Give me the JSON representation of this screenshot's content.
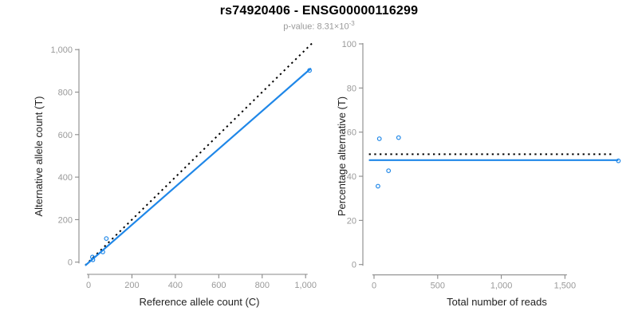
{
  "header": {
    "title": "rs74920406 - ENSG00000116299",
    "subtitle_prefix": "p-value: 8.31×10",
    "subtitle_exponent": "-3"
  },
  "colors": {
    "accent_blue": "#1F87E8",
    "dotted_black": "#000000",
    "axis_line": "#8A8A8A",
    "tick_text": "#9A9A9A",
    "label_text": "#222222",
    "subtitle_text": "#9A9A9A"
  },
  "chart_data": [
    {
      "id": "allele_counts",
      "type": "scatter",
      "xlabel": "Reference allele count (C)",
      "ylabel": "Alternative allele count (T)",
      "xlim": [
        0,
        1000
      ],
      "ylim": [
        0,
        1000
      ],
      "x_ticks": [
        0,
        200,
        400,
        600,
        800,
        1000
      ],
      "x_tick_labels": [
        "0",
        "200",
        "400",
        "600",
        "800",
        "1,000"
      ],
      "y_ticks": [
        0,
        200,
        400,
        600,
        800,
        1000
      ],
      "y_tick_labels": [
        "0",
        "200",
        "400",
        "600",
        "800",
        "1,000"
      ],
      "grid": false,
      "legend": "none",
      "points": [
        [
          20,
          11
        ],
        [
          18,
          24
        ],
        [
          66,
          48
        ],
        [
          82,
          111
        ],
        [
          1018,
          902
        ]
      ],
      "lines": [
        {
          "name": "identity-line",
          "style": "dotted",
          "color_key": "dotted_black",
          "from": [
            -15,
            -15
          ],
          "to": [
            1038,
            1038
          ]
        },
        {
          "name": "fit-line",
          "style": "solid",
          "color_key": "accent_blue",
          "from": [
            -15,
            -16
          ],
          "to": [
            1025,
            912
          ]
        }
      ]
    },
    {
      "id": "percentage_alternative",
      "type": "scatter",
      "xlabel": "Total number of reads",
      "ylabel": "Percentage alternative (T)",
      "xlim": [
        0,
        1500
      ],
      "ylim": [
        0,
        100
      ],
      "x_ticks": [
        0,
        500,
        1000,
        1500
      ],
      "x_tick_labels": [
        "0",
        "500",
        "1,000",
        "1,500"
      ],
      "y_ticks": [
        0,
        20,
        40,
        60,
        80,
        100
      ],
      "y_tick_labels": [
        "0",
        "20",
        "40",
        "60",
        "80",
        "100"
      ],
      "grid": false,
      "legend": "none",
      "points": [
        [
          31,
          35.5
        ],
        [
          42,
          57
        ],
        [
          114,
          42.5
        ],
        [
          193,
          57.5
        ],
        [
          1920,
          47
        ]
      ],
      "lines": [
        {
          "name": "expected-50pct-line",
          "style": "dotted",
          "color_key": "dotted_black",
          "from": [
            -40,
            50
          ],
          "to": [
            1880,
            50
          ]
        },
        {
          "name": "mean-percentage-line",
          "style": "solid",
          "color_key": "accent_blue",
          "from": [
            -40,
            47.3
          ],
          "to": [
            1920,
            47.3
          ]
        }
      ]
    }
  ]
}
